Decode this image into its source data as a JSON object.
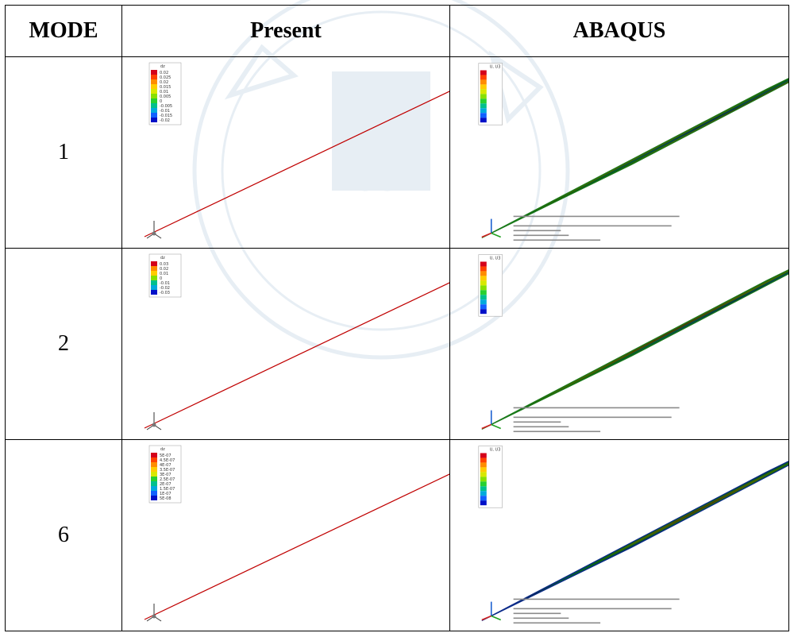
{
  "table": {
    "headers": {
      "mode": "MODE",
      "present": "Present",
      "abaqus": "ABAQUS"
    },
    "rows": [
      {
        "mode": "1",
        "present_legend_title": "dz",
        "present_legend": [
          "0.02",
          "0.025",
          "0.02",
          "0.015",
          "0.01",
          "0.005",
          "0",
          "-0.005",
          "-0.01",
          "-0.015",
          "-0.02"
        ],
        "abaqus_legend_title": "U, U3"
      },
      {
        "mode": "2",
        "present_legend_title": "dz",
        "present_legend": [
          "0.03",
          "0.02",
          "0.01",
          "0",
          "-0.01",
          "-0.02",
          "-0.03"
        ],
        "abaqus_legend_title": "U, U3"
      },
      {
        "mode": "6",
        "present_legend_title": "dz",
        "present_legend": [
          "5E-07",
          "4.5E-07",
          "4E-07",
          "3.5E-07",
          "3E-07",
          "2.5E-07",
          "2E-07",
          "1.5E-07",
          "1E-07",
          "5E-08"
        ],
        "abaqus_legend_title": "U, U3"
      }
    ]
  },
  "colors": {
    "contour": [
      "#d4001a",
      "#ff4000",
      "#ff8c00",
      "#ffcc00",
      "#d8e800",
      "#88e000",
      "#28d030",
      "#00c08c",
      "#00aadc",
      "#1060ff",
      "#0010c8"
    ],
    "plate_edge": "#c00000",
    "mesh": "#0a3a0a"
  }
}
